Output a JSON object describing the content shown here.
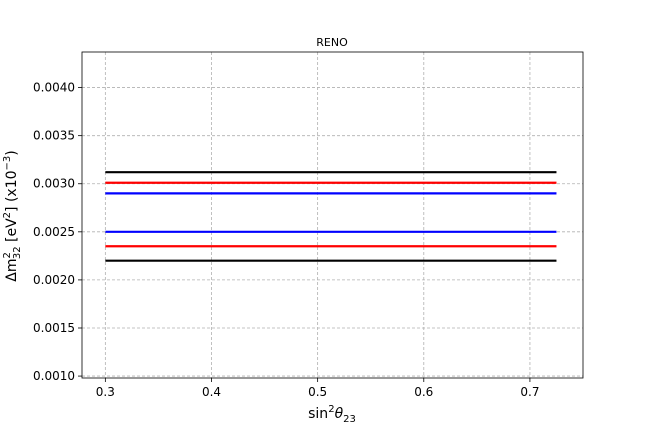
{
  "chart_data": {
    "type": "line",
    "title": "RENO",
    "xlabel_base": "sin",
    "xlabel_sup": "2",
    "xlabel_theta": "θ",
    "xlabel_sub": "23",
    "ylabel_delta": "Δm",
    "ylabel_sub": "32",
    "ylabel_sup1": "2",
    "ylabel_open": " [eV",
    "ylabel_sup2": "2",
    "ylabel_mid": "] (x10",
    "ylabel_sup3": "−3",
    "ylabel_close": ")",
    "xlim": [
      0.278,
      0.75
    ],
    "ylim": [
      0.00098,
      0.00437
    ],
    "xticks": [
      0.3,
      0.4,
      0.5,
      0.6,
      0.7
    ],
    "xtick_labels": [
      "0.3",
      "0.4",
      "0.5",
      "0.6",
      "0.7"
    ],
    "yticks": [
      0.001,
      0.0015,
      0.002,
      0.0025,
      0.003,
      0.0035,
      0.004
    ],
    "ytick_labels": [
      "0.0010",
      "0.0015",
      "0.0020",
      "0.0025",
      "0.0030",
      "0.0035",
      "0.0040"
    ],
    "grid": true,
    "grid_style": "dashed",
    "series": [
      {
        "color": "#000000",
        "x": [
          0.3,
          0.725
        ],
        "y": [
          0.00312,
          0.00312
        ]
      },
      {
        "color": "#ff0000",
        "x": [
          0.3,
          0.725
        ],
        "y": [
          0.00301,
          0.00301
        ]
      },
      {
        "color": "#0000ff",
        "x": [
          0.3,
          0.725
        ],
        "y": [
          0.0029,
          0.0029
        ]
      },
      {
        "color": "#0000ff",
        "x": [
          0.3,
          0.725
        ],
        "y": [
          0.0025,
          0.0025
        ]
      },
      {
        "color": "#ff0000",
        "x": [
          0.3,
          0.725
        ],
        "y": [
          0.00235,
          0.00235
        ]
      },
      {
        "color": "#000000",
        "x": [
          0.3,
          0.725
        ],
        "y": [
          0.0022,
          0.0022
        ]
      }
    ]
  }
}
